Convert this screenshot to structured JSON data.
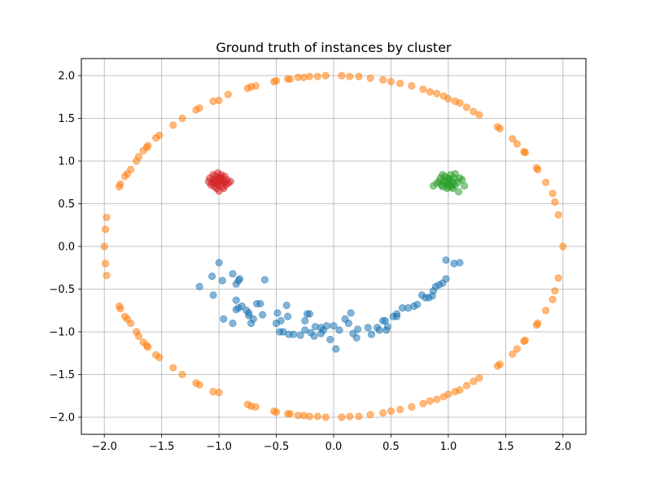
{
  "chart_data": {
    "type": "scatter",
    "title": "Ground truth of instances by cluster",
    "xlabel": "",
    "ylabel": "",
    "xlim": [
      -2.2,
      2.2
    ],
    "ylim": [
      -2.2,
      2.2
    ],
    "grid": true,
    "x_ticks": [
      -2.0,
      -1.5,
      -1.0,
      -0.5,
      0.0,
      0.5,
      1.0,
      1.5,
      2.0
    ],
    "y_ticks": [
      -2.0,
      -1.5,
      -1.0,
      -0.5,
      0.0,
      0.5,
      1.0,
      1.5,
      2.0
    ],
    "x_tick_labels": [
      "−2.0",
      "−1.5",
      "−1.0",
      "−0.5",
      "0.0",
      "0.5",
      "1.0",
      "1.5",
      "2.0"
    ],
    "y_tick_labels": [
      "−2.0",
      "−1.5",
      "−1.0",
      "−0.5",
      "0.0",
      "0.5",
      "1.0",
      "1.5",
      "2.0"
    ],
    "series": [
      {
        "color": "#ff7f0e",
        "points": [
          [
            2.0,
            0.0
          ],
          [
            1.96,
            0.37
          ],
          [
            1.93,
            0.52
          ],
          [
            1.91,
            0.62
          ],
          [
            1.85,
            0.75
          ],
          [
            1.78,
            0.9
          ],
          [
            1.77,
            0.92
          ],
          [
            1.67,
            1.1
          ],
          [
            1.66,
            1.11
          ],
          [
            1.6,
            1.2
          ],
          [
            1.56,
            1.26
          ],
          [
            1.45,
            1.38
          ],
          [
            1.43,
            1.4
          ],
          [
            1.27,
            1.54
          ],
          [
            1.22,
            1.58
          ],
          [
            1.16,
            1.63
          ],
          [
            1.1,
            1.68
          ],
          [
            1.06,
            1.7
          ],
          [
            1.0,
            1.73
          ],
          [
            0.96,
            1.76
          ],
          [
            0.9,
            1.79
          ],
          [
            0.84,
            1.81
          ],
          [
            0.78,
            1.84
          ],
          [
            0.68,
            1.88
          ],
          [
            0.58,
            1.91
          ],
          [
            0.5,
            1.93
          ],
          [
            0.43,
            1.95
          ],
          [
            0.32,
            1.97
          ],
          [
            0.22,
            1.99
          ],
          [
            0.14,
            1.99
          ],
          [
            0.07,
            2.0
          ],
          [
            -0.07,
            2.0
          ],
          [
            -0.14,
            1.99
          ],
          [
            -0.21,
            1.99
          ],
          [
            -0.26,
            1.98
          ],
          [
            -0.31,
            1.98
          ],
          [
            -0.38,
            1.96
          ],
          [
            -0.4,
            1.96
          ],
          [
            -0.5,
            1.94
          ],
          [
            -0.52,
            1.93
          ],
          [
            -0.68,
            1.88
          ],
          [
            -0.72,
            1.87
          ],
          [
            -0.75,
            1.85
          ],
          [
            -0.92,
            1.78
          ],
          [
            -1.0,
            1.71
          ],
          [
            -1.05,
            1.7
          ],
          [
            -1.17,
            1.62
          ],
          [
            -1.2,
            1.6
          ],
          [
            -1.32,
            1.5
          ],
          [
            -1.4,
            1.42
          ],
          [
            -1.52,
            1.3
          ],
          [
            -1.55,
            1.27
          ],
          [
            -1.62,
            1.18
          ],
          [
            -1.63,
            1.16
          ],
          [
            -1.66,
            1.12
          ],
          [
            -1.7,
            1.05
          ],
          [
            -1.72,
            1.0
          ],
          [
            -1.77,
            0.9
          ],
          [
            -1.8,
            0.85
          ],
          [
            -1.82,
            0.82
          ],
          [
            -1.86,
            0.73
          ],
          [
            -1.87,
            0.7
          ],
          [
            -1.98,
            0.34
          ],
          [
            -1.99,
            0.2
          ],
          [
            -2.0,
            0.0
          ],
          [
            -1.99,
            -0.2
          ],
          [
            -1.98,
            -0.34
          ],
          [
            -1.87,
            -0.7
          ],
          [
            -1.86,
            -0.73
          ],
          [
            -1.82,
            -0.82
          ],
          [
            -1.8,
            -0.85
          ],
          [
            -1.77,
            -0.9
          ],
          [
            -1.72,
            -1.0
          ],
          [
            -1.7,
            -1.05
          ],
          [
            -1.66,
            -1.12
          ],
          [
            -1.63,
            -1.16
          ],
          [
            -1.62,
            -1.18
          ],
          [
            -1.55,
            -1.27
          ],
          [
            -1.52,
            -1.3
          ],
          [
            -1.4,
            -1.42
          ],
          [
            -1.32,
            -1.5
          ],
          [
            -1.2,
            -1.6
          ],
          [
            -1.17,
            -1.62
          ],
          [
            -1.05,
            -1.7
          ],
          [
            -1.0,
            -1.71
          ],
          [
            -0.75,
            -1.85
          ],
          [
            -0.72,
            -1.87
          ],
          [
            -0.68,
            -1.88
          ],
          [
            -0.52,
            -1.93
          ],
          [
            -0.5,
            -1.94
          ],
          [
            -0.4,
            -1.96
          ],
          [
            -0.38,
            -1.96
          ],
          [
            -0.31,
            -1.98
          ],
          [
            -0.26,
            -1.98
          ],
          [
            -0.21,
            -1.99
          ],
          [
            -0.14,
            -1.99
          ],
          [
            -0.07,
            -2.0
          ],
          [
            0.07,
            -2.0
          ],
          [
            0.14,
            -1.99
          ],
          [
            0.22,
            -1.99
          ],
          [
            0.32,
            -1.97
          ],
          [
            0.43,
            -1.95
          ],
          [
            0.5,
            -1.93
          ],
          [
            0.58,
            -1.91
          ],
          [
            0.68,
            -1.88
          ],
          [
            0.78,
            -1.84
          ],
          [
            0.84,
            -1.81
          ],
          [
            0.9,
            -1.79
          ],
          [
            0.96,
            -1.76
          ],
          [
            1.0,
            -1.73
          ],
          [
            1.06,
            -1.7
          ],
          [
            1.1,
            -1.68
          ],
          [
            1.16,
            -1.63
          ],
          [
            1.22,
            -1.58
          ],
          [
            1.27,
            -1.54
          ],
          [
            1.43,
            -1.4
          ],
          [
            1.45,
            -1.38
          ],
          [
            1.56,
            -1.26
          ],
          [
            1.6,
            -1.2
          ],
          [
            1.66,
            -1.11
          ],
          [
            1.67,
            -1.1
          ],
          [
            1.77,
            -0.92
          ],
          [
            1.78,
            -0.9
          ],
          [
            1.85,
            -0.75
          ],
          [
            1.91,
            -0.62
          ],
          [
            1.93,
            -0.52
          ],
          [
            1.96,
            -0.37
          ]
        ]
      },
      {
        "color": "#d62728",
        "points": [
          [
            -1.0,
            0.8
          ],
          [
            -1.05,
            0.78
          ],
          [
            -0.96,
            0.76
          ],
          [
            -1.02,
            0.73
          ],
          [
            -0.98,
            0.84
          ],
          [
            -1.08,
            0.8
          ],
          [
            -0.93,
            0.78
          ],
          [
            -1.04,
            0.7
          ],
          [
            -1.0,
            0.65
          ],
          [
            -0.97,
            0.7
          ],
          [
            -1.06,
            0.74
          ],
          [
            -0.9,
            0.76
          ],
          [
            -1.01,
            0.86
          ],
          [
            -0.95,
            0.82
          ],
          [
            -1.09,
            0.76
          ],
          [
            -1.03,
            0.82
          ],
          [
            -0.99,
            0.77
          ],
          [
            -0.94,
            0.72
          ],
          [
            -1.07,
            0.72
          ],
          [
            -1.0,
            0.72
          ],
          [
            -0.97,
            0.8
          ],
          [
            -1.04,
            0.75
          ],
          [
            -0.92,
            0.74
          ],
          [
            -1.02,
            0.68
          ],
          [
            -0.96,
            0.68
          ],
          [
            -1.05,
            0.84
          ],
          [
            -0.99,
            0.81
          ],
          [
            -1.03,
            0.78
          ],
          [
            -0.95,
            0.75
          ],
          [
            -1.0,
            0.76
          ]
        ]
      },
      {
        "color": "#2ca02c",
        "points": [
          [
            1.0,
            0.8
          ],
          [
            0.96,
            0.76
          ],
          [
            1.04,
            0.76
          ],
          [
            1.02,
            0.84
          ],
          [
            0.94,
            0.72
          ],
          [
            1.06,
            0.72
          ],
          [
            1.0,
            0.7
          ],
          [
            0.87,
            0.71
          ],
          [
            1.14,
            0.71
          ],
          [
            1.1,
            0.8
          ],
          [
            0.93,
            0.8
          ],
          [
            1.05,
            0.8
          ],
          [
            0.98,
            0.73
          ],
          [
            1.02,
            0.72
          ],
          [
            1.08,
            0.75
          ],
          [
            0.95,
            0.7
          ],
          [
            1.0,
            0.74
          ],
          [
            1.03,
            0.7
          ],
          [
            0.97,
            0.82
          ],
          [
            0.92,
            0.76
          ],
          [
            1.09,
            0.64
          ],
          [
            1.01,
            0.78
          ],
          [
            0.99,
            0.68
          ],
          [
            1.06,
            0.85
          ],
          [
            0.95,
            0.84
          ],
          [
            1.12,
            0.78
          ],
          [
            0.9,
            0.74
          ],
          [
            1.04,
            0.68
          ],
          [
            0.98,
            0.77
          ],
          [
            1.0,
            0.76
          ]
        ]
      },
      {
        "color": "#1f77b4",
        "points": [
          [
            -1.17,
            -0.47
          ],
          [
            -1.06,
            -0.35
          ],
          [
            -1.05,
            -0.57
          ],
          [
            -1.0,
            -0.19
          ],
          [
            -0.97,
            -0.4
          ],
          [
            -0.88,
            -0.32
          ],
          [
            -0.85,
            -0.44
          ],
          [
            -0.83,
            -0.4
          ],
          [
            -0.85,
            -0.63
          ],
          [
            -0.85,
            -0.74
          ],
          [
            -0.82,
            -0.38
          ],
          [
            -0.8,
            -0.7
          ],
          [
            -0.76,
            -0.75
          ],
          [
            -0.74,
            -0.78
          ],
          [
            -0.74,
            -0.81
          ],
          [
            -0.72,
            -0.9
          ],
          [
            -0.67,
            -0.67
          ],
          [
            -0.64,
            -0.67
          ],
          [
            -0.6,
            -0.39
          ],
          [
            -0.62,
            -0.8
          ],
          [
            -0.7,
            -0.85
          ],
          [
            -0.88,
            -0.9
          ],
          [
            -0.5,
            -0.9
          ],
          [
            -0.49,
            -0.78
          ],
          [
            -0.46,
            -0.87
          ],
          [
            -0.44,
            -1.0
          ],
          [
            -0.41,
            -0.69
          ],
          [
            -0.4,
            -0.82
          ],
          [
            -0.39,
            -1.03
          ],
          [
            -0.35,
            -1.03
          ],
          [
            -0.29,
            -1.04
          ],
          [
            -0.25,
            -0.98
          ],
          [
            -0.25,
            -0.87
          ],
          [
            -0.23,
            -0.79
          ],
          [
            -0.21,
            -0.79
          ],
          [
            -0.2,
            -1.01
          ],
          [
            -0.17,
            -1.05
          ],
          [
            -0.16,
            -0.94
          ],
          [
            -0.11,
            -1.02
          ],
          [
            -0.09,
            -0.98
          ],
          [
            -0.06,
            -0.93
          ],
          [
            -0.03,
            -1.09
          ],
          [
            0.0,
            -0.93
          ],
          [
            0.02,
            -1.2
          ],
          [
            0.05,
            -0.98
          ],
          [
            0.1,
            -0.85
          ],
          [
            0.13,
            -0.9
          ],
          [
            0.15,
            -0.78
          ],
          [
            0.17,
            -1.02
          ],
          [
            0.2,
            -1.07
          ],
          [
            0.21,
            -0.97
          ],
          [
            0.3,
            -0.95
          ],
          [
            0.33,
            -1.03
          ],
          [
            0.38,
            -0.95
          ],
          [
            0.43,
            -0.87
          ],
          [
            0.45,
            -0.87
          ],
          [
            0.46,
            -0.98
          ],
          [
            0.47,
            -0.94
          ],
          [
            0.52,
            -0.82
          ],
          [
            0.55,
            -0.79
          ],
          [
            0.55,
            -0.82
          ],
          [
            0.6,
            -0.72
          ],
          [
            0.65,
            -0.72
          ],
          [
            0.7,
            -0.7
          ],
          [
            0.73,
            -0.68
          ],
          [
            0.77,
            -0.57
          ],
          [
            0.8,
            -0.6
          ],
          [
            0.83,
            -0.6
          ],
          [
            0.87,
            -0.52
          ],
          [
            0.89,
            -0.47
          ],
          [
            0.92,
            -0.45
          ],
          [
            0.95,
            -0.43
          ],
          [
            0.98,
            -0.38
          ],
          [
            0.98,
            -0.16
          ],
          [
            1.05,
            -0.2
          ],
          [
            1.1,
            -0.19
          ],
          [
            -0.96,
            -0.85
          ],
          [
            -0.83,
            -0.72
          ],
          [
            0.86,
            -0.58
          ],
          [
            -0.47,
            -1.0
          ],
          [
            -0.11,
            -0.95
          ],
          [
            0.4,
            -0.98
          ]
        ]
      }
    ]
  }
}
